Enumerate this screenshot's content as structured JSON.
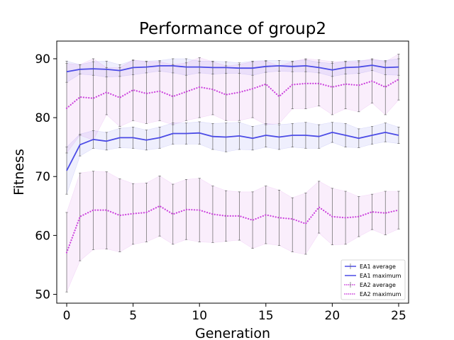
{
  "chart_data": {
    "type": "line",
    "title": "Performance of group2",
    "xlabel": "Generation",
    "ylabel": "Fitness",
    "xlim": [
      -0.75,
      25.75
    ],
    "ylim": [
      48.5,
      93.0
    ],
    "xticks": [
      0,
      5,
      10,
      15,
      20,
      25
    ],
    "yticks": [
      50,
      60,
      70,
      80,
      90
    ],
    "grid": false,
    "legend_position": "lower-right",
    "x": [
      0,
      1,
      2,
      3,
      4,
      5,
      6,
      7,
      8,
      9,
      10,
      11,
      12,
      13,
      14,
      15,
      16,
      17,
      18,
      19,
      20,
      21,
      22,
      23,
      24,
      25
    ],
    "series": [
      {
        "name": "EA1 average",
        "color": "#4b4be6",
        "style": "solid",
        "values": [
          71.0,
          75.4,
          76.3,
          76.0,
          76.6,
          76.6,
          76.2,
          76.6,
          77.3,
          77.3,
          77.4,
          76.8,
          76.7,
          76.9,
          76.5,
          77.0,
          76.7,
          77.0,
          77.0,
          76.8,
          77.5,
          77.0,
          76.5,
          77.0,
          77.5,
          77.0
        ],
        "lower": [
          67.0,
          73.5,
          74.8,
          74.5,
          74.9,
          74.8,
          74.5,
          74.8,
          75.5,
          75.5,
          75.5,
          74.6,
          74.2,
          74.6,
          74.5,
          75.0,
          74.6,
          75.0,
          74.8,
          74.8,
          75.8,
          75.0,
          74.9,
          75.5,
          75.9,
          75.6
        ],
        "upper": [
          75.0,
          77.2,
          77.8,
          77.5,
          78.2,
          78.4,
          77.9,
          78.4,
          79.1,
          79.1,
          79.3,
          79.0,
          79.1,
          79.2,
          78.5,
          79.0,
          78.8,
          79.0,
          79.2,
          78.8,
          79.2,
          79.0,
          78.1,
          78.5,
          79.1,
          78.4
        ]
      },
      {
        "name": "EA1 maximum",
        "color": "#4b4be6",
        "style": "solid",
        "values": [
          87.8,
          88.2,
          88.3,
          88.2,
          88.0,
          88.5,
          88.6,
          88.8,
          88.8,
          88.6,
          88.6,
          88.5,
          88.5,
          88.4,
          88.4,
          88.7,
          88.8,
          88.7,
          88.8,
          88.5,
          88.1,
          88.5,
          88.6,
          88.9,
          88.5,
          88.6
        ],
        "lower": [
          86.0,
          87.4,
          87.2,
          86.9,
          87.0,
          87.3,
          87.6,
          87.9,
          87.6,
          87.2,
          87.6,
          87.4,
          87.5,
          87.5,
          87.2,
          87.7,
          87.9,
          87.8,
          87.8,
          87.6,
          87.0,
          87.4,
          87.5,
          88.0,
          87.3,
          87.2
        ],
        "upper": [
          89.6,
          89.0,
          89.5,
          89.6,
          89.0,
          89.7,
          89.6,
          89.7,
          90.0,
          90.0,
          89.6,
          89.6,
          89.5,
          89.3,
          89.6,
          89.7,
          89.7,
          89.6,
          89.8,
          89.4,
          89.2,
          89.6,
          89.7,
          89.8,
          89.7,
          90.0
        ]
      },
      {
        "name": "EA2 average",
        "color": "#cc44dd",
        "style": "dotted",
        "values": [
          57.1,
          63.2,
          64.3,
          64.3,
          63.4,
          63.7,
          63.9,
          65.0,
          63.6,
          64.4,
          64.3,
          63.6,
          63.3,
          63.3,
          62.6,
          63.5,
          63.0,
          62.8,
          62.0,
          64.8,
          63.2,
          63.0,
          63.2,
          64.0,
          63.8,
          64.3
        ],
        "lower": [
          50.4,
          55.7,
          57.6,
          57.7,
          57.2,
          58.5,
          58.9,
          59.9,
          58.5,
          59.3,
          58.9,
          58.8,
          59.0,
          59.2,
          57.8,
          58.6,
          58.3,
          57.2,
          56.8,
          60.4,
          58.4,
          58.5,
          59.8,
          61.0,
          60.1,
          61.1
        ],
        "upper": [
          63.9,
          70.6,
          70.9,
          70.8,
          69.6,
          68.8,
          68.9,
          70.1,
          68.7,
          69.5,
          69.7,
          68.4,
          67.6,
          67.4,
          67.4,
          68.4,
          67.7,
          66.4,
          67.2,
          69.2,
          68.0,
          67.5,
          66.6,
          67.0,
          67.5,
          67.5
        ]
      },
      {
        "name": "EA2 maximum",
        "color": "#cc44dd",
        "style": "dotted",
        "values": [
          81.6,
          83.5,
          83.3,
          84.3,
          83.4,
          84.7,
          84.1,
          84.5,
          83.6,
          84.4,
          85.2,
          84.8,
          83.9,
          84.3,
          84.9,
          85.7,
          83.6,
          85.6,
          85.8,
          85.8,
          85.2,
          85.7,
          85.5,
          86.2,
          85.2,
          86.5
        ],
        "lower": [
          74.0,
          77.0,
          76.2,
          80.5,
          78.5,
          79.5,
          79.0,
          79.5,
          78.8,
          79.5,
          80.0,
          80.5,
          79.5,
          79.5,
          80.0,
          78.8,
          79.0,
          81.5,
          81.5,
          82.0,
          80.5,
          81.5,
          81.0,
          82.5,
          80.5,
          83.0
        ],
        "upper": [
          89.2,
          89.0,
          90.0,
          88.5,
          88.5,
          89.8,
          89.5,
          89.5,
          89.0,
          89.3,
          90.2,
          89.5,
          88.8,
          89.0,
          89.5,
          89.6,
          88.8,
          89.5,
          90.0,
          89.8,
          89.5,
          89.5,
          89.5,
          90.0,
          89.5,
          90.8
        ]
      }
    ]
  }
}
